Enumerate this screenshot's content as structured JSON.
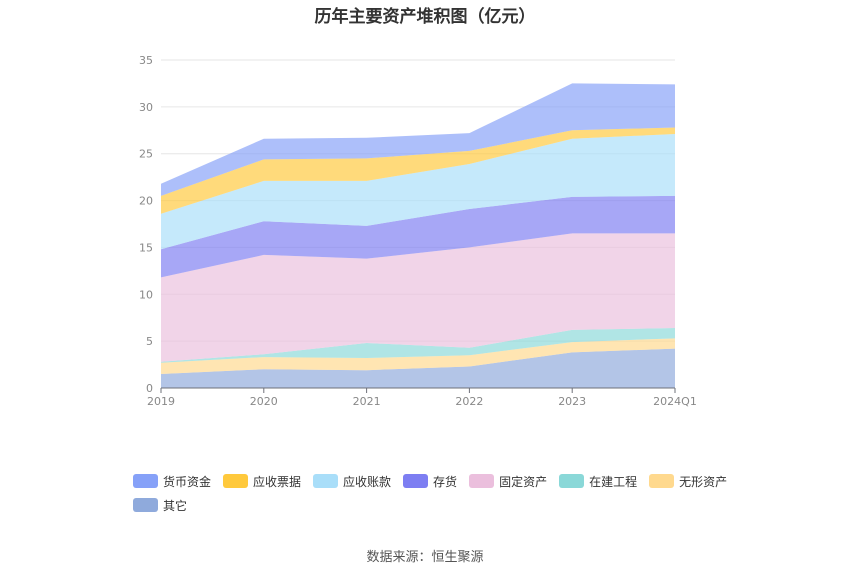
{
  "chart_data": {
    "type": "area",
    "stacked": true,
    "title": "历年主要资产堆积图（亿元）",
    "categories": [
      "2019",
      "2020",
      "2021",
      "2022",
      "2023",
      "2024Q1"
    ],
    "ylim": [
      0,
      35
    ],
    "yticks": [
      0,
      5,
      10,
      15,
      20,
      25,
      30,
      35
    ],
    "grid": true,
    "legend_position": "bottom",
    "series": [
      {
        "name": "其它",
        "color": "#8faadc",
        "values": [
          1.5,
          2.0,
          1.9,
          2.3,
          3.8,
          4.2
        ]
      },
      {
        "name": "无形资产",
        "color": "#ffd98e",
        "values": [
          1.2,
          1.3,
          1.3,
          1.2,
          1.1,
          1.1
        ]
      },
      {
        "name": "在建工程",
        "color": "#8ad8d8",
        "values": [
          0.1,
          0.3,
          1.6,
          0.8,
          1.3,
          1.1
        ]
      },
      {
        "name": "固定资产",
        "color": "#ebbfdd",
        "values": [
          9.0,
          10.6,
          9.0,
          10.7,
          10.3,
          10.1
        ]
      },
      {
        "name": "存货",
        "color": "#7d7ef2",
        "values": [
          3.0,
          3.6,
          3.5,
          4.1,
          3.9,
          4.0
        ]
      },
      {
        "name": "应收账款",
        "color": "#a9def9",
        "values": [
          3.8,
          4.3,
          4.8,
          4.8,
          6.2,
          6.6
        ]
      },
      {
        "name": "应收票据",
        "color": "#ffc93c",
        "values": [
          1.9,
          2.3,
          2.4,
          1.4,
          0.9,
          0.7
        ]
      },
      {
        "name": "货币资金",
        "color": "#86a1f8",
        "values": [
          1.3,
          2.2,
          2.2,
          1.9,
          5.0,
          4.6
        ]
      }
    ]
  },
  "legend_order": [
    "货币资金",
    "应收票据",
    "应收账款",
    "存货",
    "固定资产",
    "在建工程",
    "无形资产",
    "其它"
  ],
  "source_text": "数据来源：恒生聚源"
}
